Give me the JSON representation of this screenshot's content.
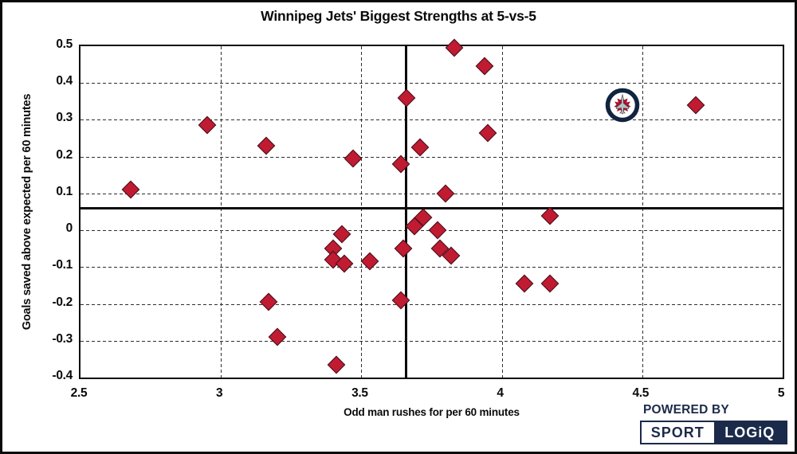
{
  "title": "Winnipeg Jets' Biggest Strengths at 5-vs-5",
  "chart_data": {
    "type": "scatter",
    "title": "Winnipeg Jets' Biggest Strengths at 5-vs-5",
    "xlabel": "Odd man rushes for per 60 minutes",
    "ylabel": "Goals saved above expected per 60 minutes",
    "xlim": [
      2.5,
      5
    ],
    "ylim": [
      -0.4,
      0.5
    ],
    "x_ticks": [
      2.5,
      3,
      3.5,
      4,
      4.5,
      5
    ],
    "x_tick_labels": [
      "2.5",
      "3",
      "3.5",
      "4",
      "4.5",
      "5"
    ],
    "y_ticks": [
      0.5,
      0.4,
      0.3,
      0.2,
      0.1,
      0,
      -0.1,
      -0.2,
      -0.3,
      -0.4
    ],
    "y_tick_labels": [
      "0.5",
      "0.4",
      "0.3",
      "0.2",
      "0.1",
      "0",
      "-0.1",
      "-0.2",
      "-0.3",
      "-0.4"
    ],
    "grid": "dashed",
    "legend": "none",
    "marker": "diamond",
    "marker_color": "#c01b31",
    "marker_edge_color": "#43101c",
    "reference_line_x": 3.66,
    "reference_line_y": 0.06,
    "points": [
      [
        2.68,
        0.11
      ],
      [
        2.95,
        0.285
      ],
      [
        3.16,
        0.23
      ],
      [
        3.47,
        0.195
      ],
      [
        3.66,
        0.36
      ],
      [
        3.64,
        0.18
      ],
      [
        3.71,
        0.225
      ],
      [
        3.83,
        0.495
      ],
      [
        3.94,
        0.445
      ],
      [
        3.95,
        0.265
      ],
      [
        4.69,
        0.34
      ],
      [
        3.8,
        0.1
      ],
      [
        3.72,
        0.035
      ],
      [
        3.69,
        0.01
      ],
      [
        3.77,
        0.0
      ],
      [
        4.17,
        0.04
      ],
      [
        3.43,
        -0.01
      ],
      [
        3.4,
        -0.05
      ],
      [
        3.4,
        -0.08
      ],
      [
        3.44,
        -0.09
      ],
      [
        3.53,
        -0.085
      ],
      [
        3.65,
        -0.05
      ],
      [
        3.78,
        -0.05
      ],
      [
        3.82,
        -0.07
      ],
      [
        3.17,
        -0.195
      ],
      [
        3.2,
        -0.29
      ],
      [
        3.41,
        -0.365
      ],
      [
        3.64,
        -0.19
      ],
      [
        4.08,
        -0.145
      ],
      [
        4.17,
        -0.145
      ]
    ],
    "team_logo_point": {
      "x": 4.43,
      "y": 0.34,
      "team": "Winnipeg Jets"
    }
  },
  "branding": {
    "powered_by": "POWERED BY",
    "wordmark_left": "SPORT",
    "wordmark_right": "LOGiQ",
    "navy": "#1b2a4a"
  }
}
